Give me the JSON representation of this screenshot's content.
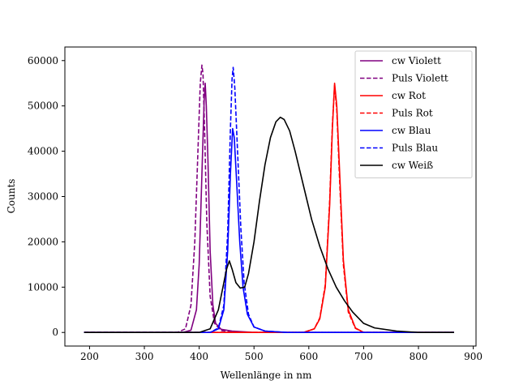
{
  "chart_data": {
    "type": "line",
    "title": "",
    "xlabel": "Wellenlänge in nm",
    "ylabel": "Counts",
    "xlim": [
      155,
      905
    ],
    "ylim": [
      -3000,
      63000
    ],
    "xticks": [
      200,
      300,
      400,
      500,
      600,
      700,
      800,
      900
    ],
    "yticks": [
      0,
      10000,
      20000,
      30000,
      40000,
      50000,
      60000
    ],
    "grid": false,
    "legend_position": "top-right",
    "series": [
      {
        "name": "cw Violett",
        "color": "#800080",
        "style": "solid",
        "x": [
          190,
          370,
          385,
          395,
          400,
          405,
          409,
          411,
          413,
          416,
          420,
          425,
          430,
          440,
          460,
          500,
          865
        ],
        "y": [
          0,
          0,
          500,
          5000,
          15000,
          35000,
          51000,
          55000,
          50000,
          38000,
          18000,
          6000,
          2000,
          700,
          300,
          0,
          0
        ]
      },
      {
        "name": "Puls Violett",
        "color": "#800080",
        "style": "dashed",
        "x": [
          190,
          360,
          375,
          385,
          392,
          398,
          402,
          405,
          407,
          410,
          414,
          420,
          428,
          440,
          470,
          865
        ],
        "y": [
          0,
          0,
          800,
          6000,
          20000,
          41000,
          55000,
          59000,
          57000,
          44000,
          24000,
          8000,
          2000,
          400,
          0,
          0
        ]
      },
      {
        "name": "cw Rot",
        "color": "#ff0000",
        "style": "solid",
        "x": [
          190,
          590,
          610,
          620,
          630,
          638,
          643,
          647,
          651,
          656,
          663,
          672,
          685,
          700,
          865
        ],
        "y": [
          0,
          0,
          800,
          3000,
          10000,
          28000,
          45000,
          55000,
          50000,
          36000,
          16000,
          5000,
          1000,
          0,
          0
        ]
      },
      {
        "name": "Puls Rot",
        "color": "#ff0000",
        "style": "dashed",
        "x": [
          190,
          590,
          610,
          620,
          630,
          638,
          643,
          647,
          651,
          656,
          663,
          672,
          685,
          700,
          865
        ],
        "y": [
          0,
          0,
          800,
          3200,
          10500,
          29000,
          46000,
          54500,
          49000,
          34000,
          15000,
          4500,
          900,
          0,
          0
        ]
      },
      {
        "name": "cw Blau",
        "color": "#0000ff",
        "style": "solid",
        "x": [
          190,
          420,
          435,
          445,
          452,
          457,
          461,
          464,
          468,
          474,
          480,
          488,
          500,
          520,
          560,
          865
        ],
        "y": [
          0,
          0,
          800,
          5000,
          18000,
          35000,
          45000,
          43000,
          34000,
          20000,
          10000,
          4000,
          1200,
          300,
          0,
          0
        ]
      },
      {
        "name": "Puls Blau",
        "color": "#0000ff",
        "style": "dashed",
        "x": [
          190,
          420,
          435,
          445,
          452,
          457,
          460,
          462,
          465,
          470,
          476,
          482,
          490,
          500,
          520,
          560,
          865
        ],
        "y": [
          0,
          0,
          1000,
          6000,
          22000,
          45000,
          56000,
          58500,
          54000,
          40000,
          23000,
          11000,
          4000,
          1200,
          300,
          0,
          0
        ]
      },
      {
        "name": "cw Weiß",
        "color": "#000000",
        "style": "solid",
        "x": [
          190,
          400,
          420,
          435,
          445,
          450,
          455,
          460,
          467,
          475,
          483,
          490,
          500,
          510,
          520,
          530,
          540,
          548,
          555,
          565,
          575,
          585,
          595,
          605,
          620,
          635,
          650,
          665,
          680,
          700,
          720,
          760,
          800,
          865
        ],
        "y": [
          0,
          0,
          800,
          5000,
          11000,
          14000,
          15800,
          14000,
          11000,
          9800,
          10000,
          13000,
          20000,
          29000,
          37000,
          43000,
          46500,
          47500,
          47000,
          44500,
          40000,
          35000,
          30000,
          25000,
          19000,
          14000,
          10000,
          7000,
          4500,
          2000,
          1000,
          300,
          0,
          0
        ]
      }
    ]
  }
}
